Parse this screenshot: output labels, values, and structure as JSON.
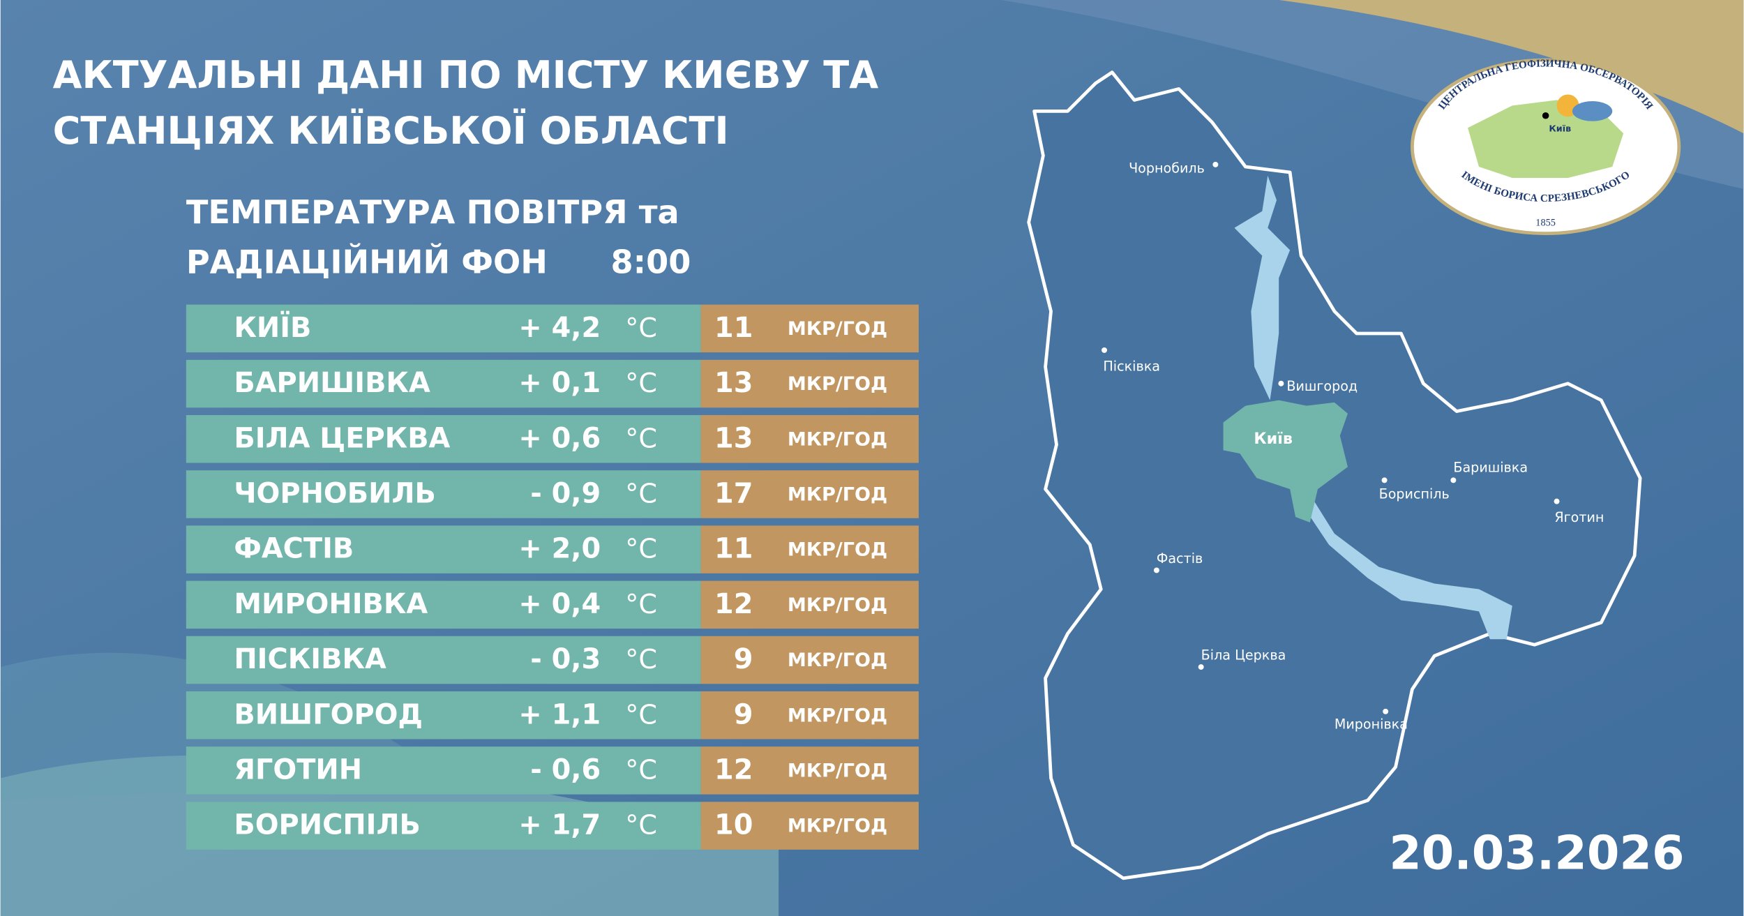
{
  "header": {
    "title": [
      "АКТУАЛЬНІ ДАНІ ПО МІСТУ КИЄВУ ТА",
      "СТАНЦІЯХ КИЇВСЬКОЇ ОБЛАСТІ"
    ],
    "subtitle": [
      "ТЕМПЕРАТУРА ПОВІТРЯ та",
      "РАДІАЦІЙНИЙ ФОН"
    ],
    "time": "8:00"
  },
  "table": {
    "temp_unit": "°C",
    "rad_unit": "МКР/ГОД",
    "rows": [
      [
        "КИЇВ",
        "+ 4,2",
        11
      ],
      [
        "БАРИШІВКА",
        "+ 0,1",
        13
      ],
      [
        "БІЛА ЦЕРКВА",
        "+ 0,6",
        13
      ],
      [
        "ЧОРНОБИЛЬ",
        "- 0,9",
        17
      ],
      [
        "ФАСТІВ",
        "+ 2,0",
        11
      ],
      [
        "МИРОНІВКА",
        "+ 0,4",
        12
      ],
      [
        "ПІСКІВКА",
        "- 0,3",
        9
      ],
      [
        "ВИШГОРОД",
        "+ 1,1",
        9
      ],
      [
        "ЯГОТИН",
        "- 0,6",
        12
      ],
      [
        "БОРИСПІЛЬ",
        "+ 1,7",
        10
      ]
    ]
  },
  "map": {
    "capital": "Київ",
    "labels": [
      "Чорнобиль",
      "Пісківка",
      "Вишгород",
      "Баришівка",
      "Бориспіль",
      "Яготин",
      "Фастів",
      "Біла Церква",
      "Миронівка"
    ]
  },
  "logo": {
    "top": "ЦЕНТРАЛЬНА ГЕОФІЗИЧНА ОБСЕРВАТОРІЯ",
    "bottom": "ІМЕНІ БОРИСА СРЕЗНЕВСЬКОГО",
    "year": "1855",
    "city": "Київ"
  },
  "date": "20.03.2026"
}
